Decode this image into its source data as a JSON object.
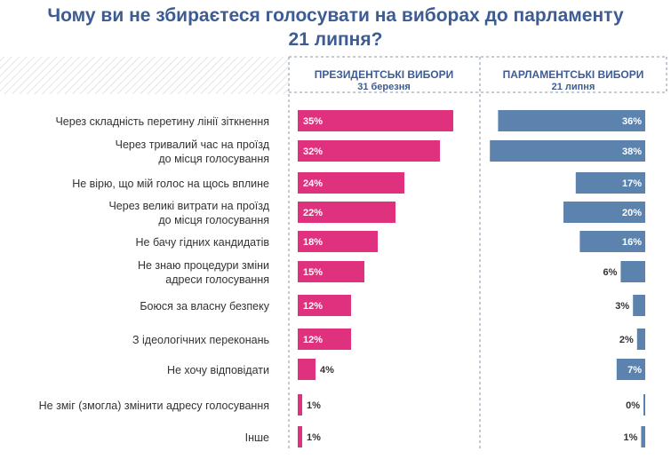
{
  "chart_data": {
    "type": "bar",
    "title": "Чому ви не збираєтеся голосувати на виборах до парламенту 21 липня?",
    "title_lines": [
      "Чому ви не збираєтеся голосувати на виборах до парламенту",
      "21 липня?"
    ],
    "categories": [
      [
        "Через складність перетину лінії зіткнення"
      ],
      [
        "Через тривалий час на проїзд",
        "до місця голосування"
      ],
      [
        "Не вірю, що мій голос на щось вплине"
      ],
      [
        "Через великі витрати на проїзд",
        "до місця голосування"
      ],
      [
        "Не бачу гідних кандидатів"
      ],
      [
        "Не знаю процедури зміни",
        "адреси голосування"
      ],
      [
        "Боюся за власну безпеку"
      ],
      [
        "З ідеологічних переконань"
      ],
      [
        "Не хочу відповідати"
      ],
      [
        "Не зміг (змогла) змінити адресу голосування"
      ],
      [
        "Інше"
      ]
    ],
    "series": [
      {
        "name": "ПРЕЗИДЕНТСЬКІ ВИБОРИ",
        "subtitle": "31 березня",
        "color": "#e0317f",
        "values": [
          35,
          32,
          24,
          22,
          18,
          15,
          12,
          12,
          4,
          1,
          1
        ]
      },
      {
        "name": "ПАРЛАМЕНТСЬКІ ВИБОРИ",
        "subtitle": "21 липня",
        "color": "#5b83ae",
        "values": [
          36,
          38,
          17,
          20,
          16,
          6,
          3,
          2,
          7,
          0,
          1
        ]
      }
    ],
    "unit": "%",
    "grid": false
  }
}
